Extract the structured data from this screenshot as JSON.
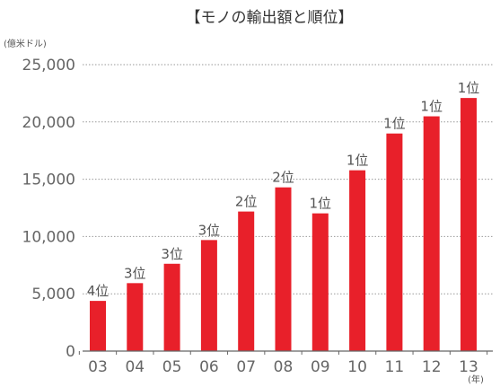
{
  "chart_data": {
    "type": "bar",
    "title": "【モノの輸出額と順位】",
    "ylabel": "(億米ドル)",
    "xlabel": "(年)",
    "ylim": [
      0,
      25000
    ],
    "yticks": [
      0,
      5000,
      10000,
      15000,
      20000,
      25000
    ],
    "ytick_labels": [
      "0",
      "5,000",
      "10,000",
      "15,000",
      "20,000",
      "25,000"
    ],
    "categories": [
      "03",
      "04",
      "05",
      "06",
      "07",
      "08",
      "09",
      "10",
      "11",
      "12",
      "13"
    ],
    "values": [
      4380,
      5930,
      7620,
      9690,
      12180,
      14290,
      12020,
      15780,
      18990,
      20490,
      22090
    ],
    "ranks": [
      "4位",
      "3位",
      "3位",
      "3位",
      "2位",
      "2位",
      "1位",
      "1位",
      "1位",
      "1位",
      "1位"
    ],
    "bar_color": "#e8202a",
    "grid": "horizontal-dotted",
    "legend": "none"
  }
}
